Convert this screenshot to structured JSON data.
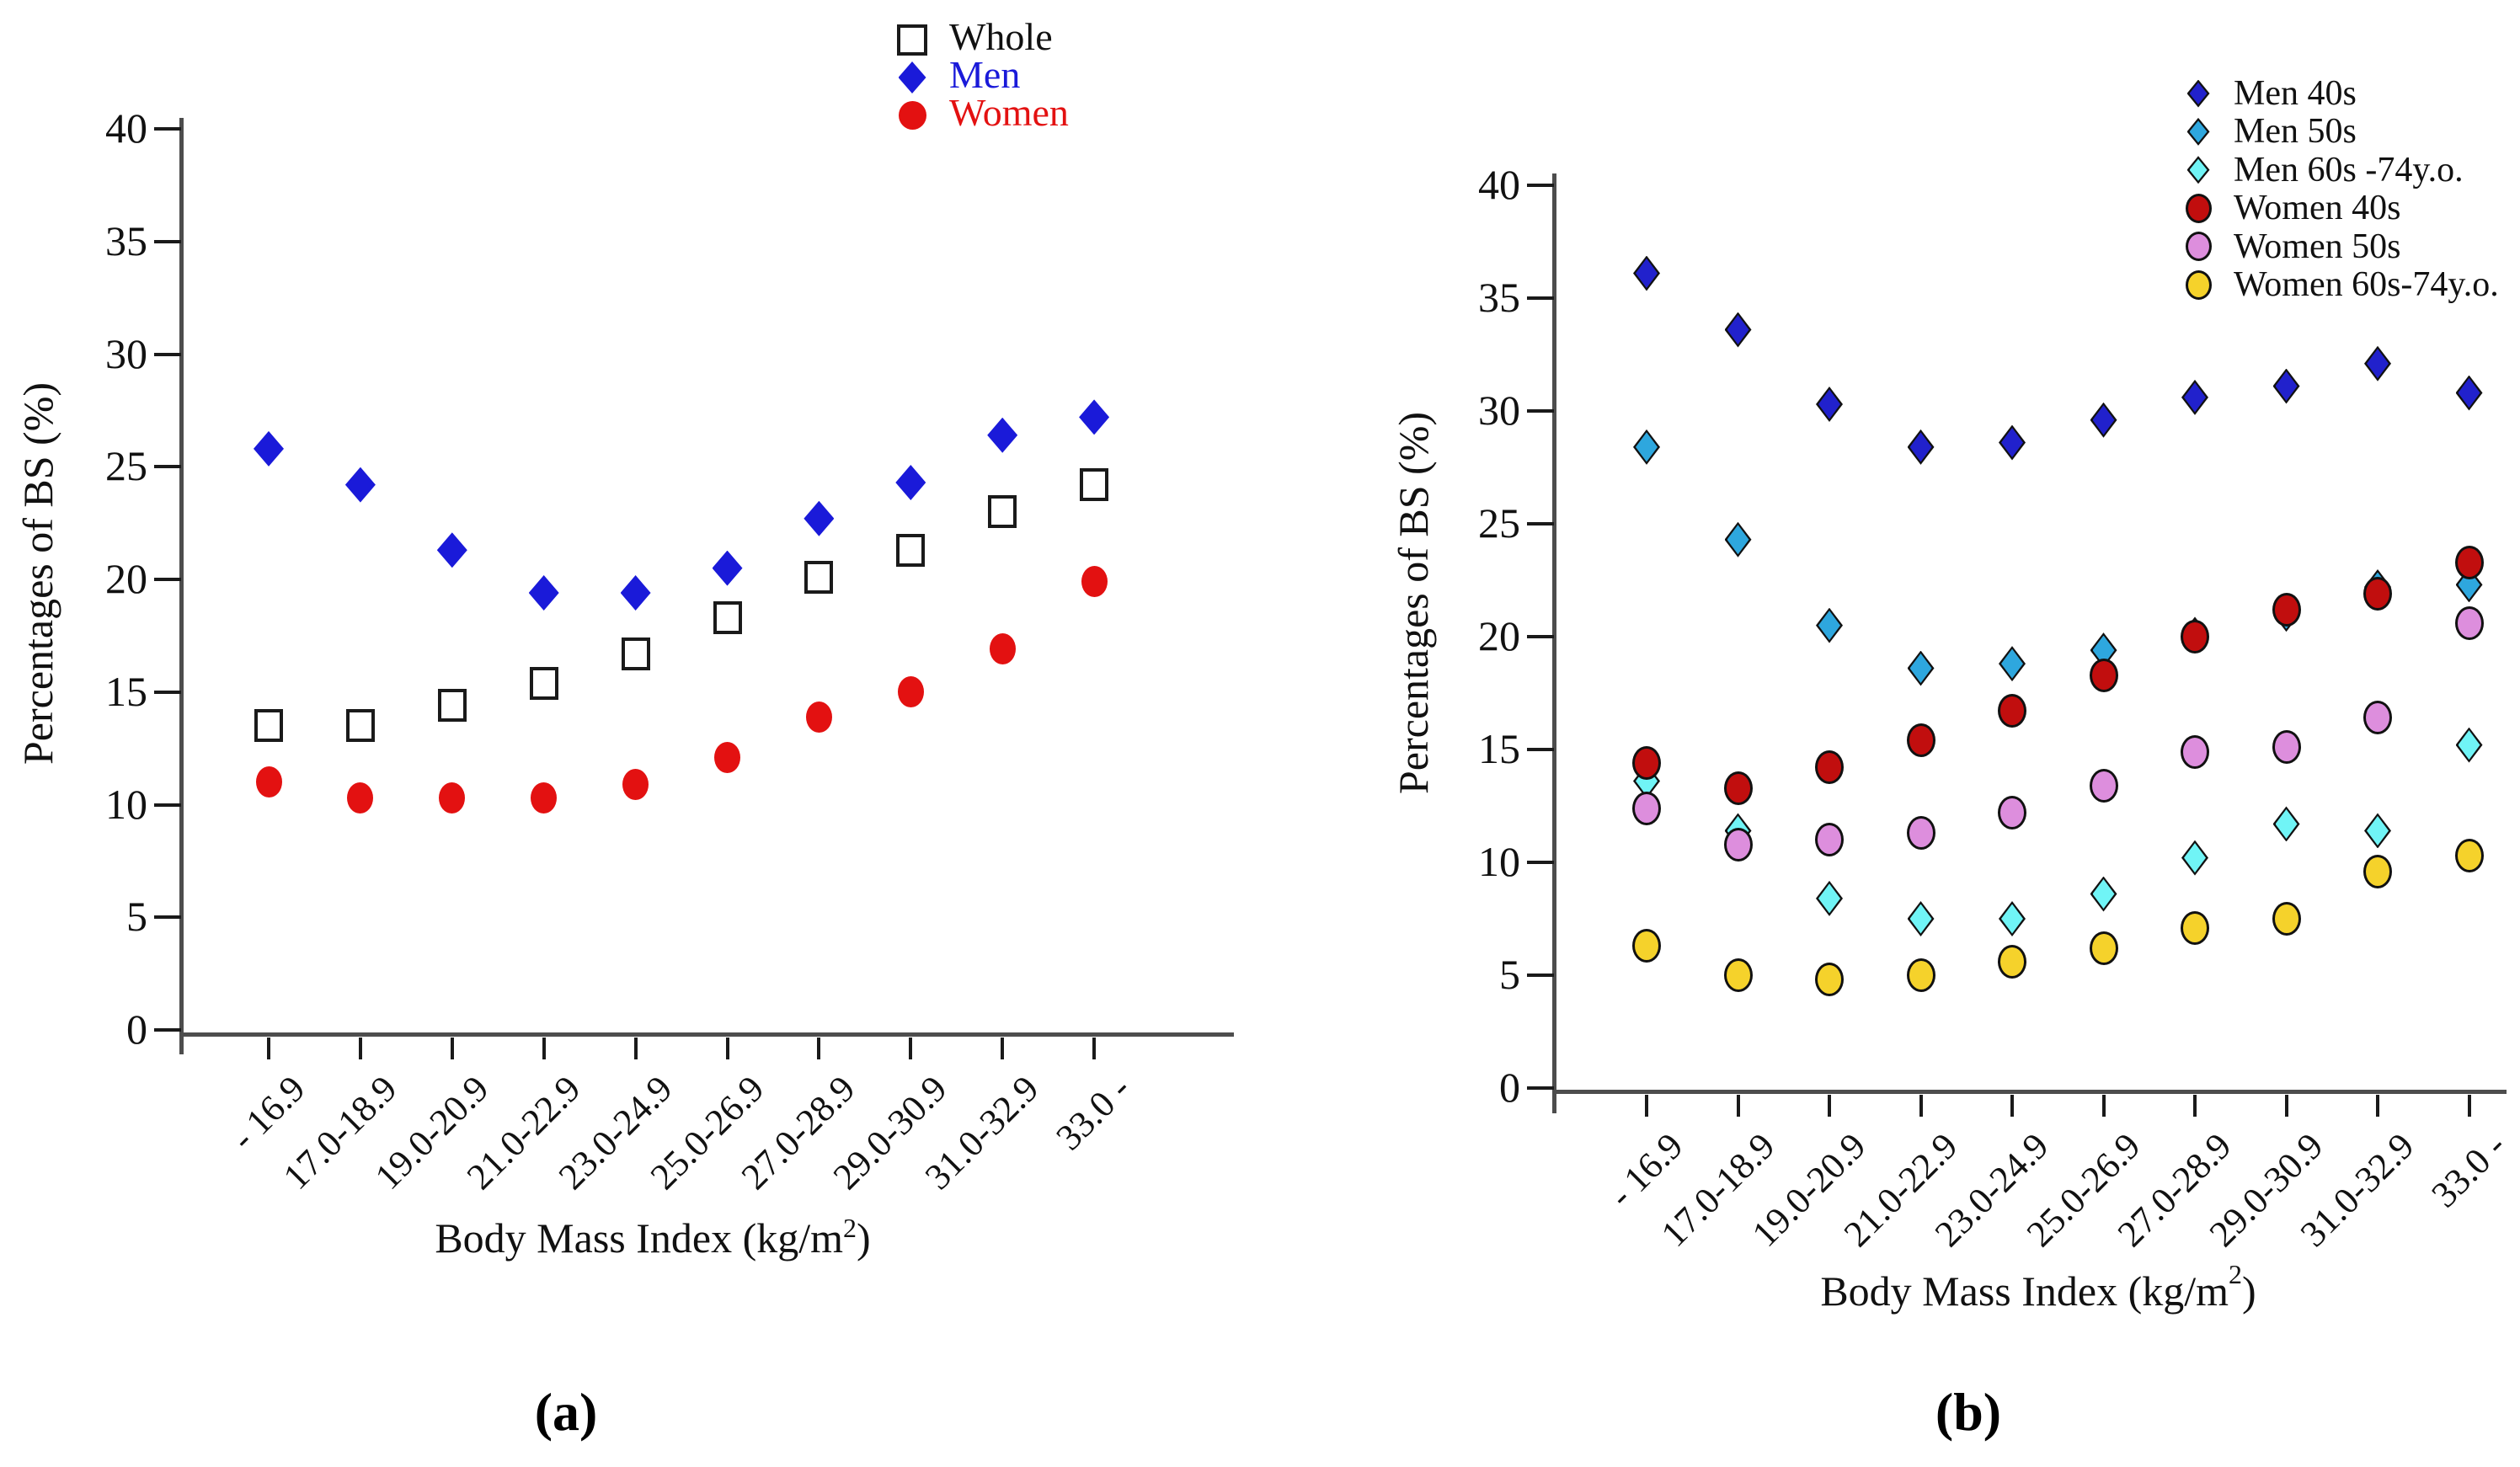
{
  "figure": {
    "ylabel": "Percentages of BS (%)",
    "xlabel": {
      "pre": "Body Mass Index (kg/m",
      "sup": "2",
      "post": ")"
    }
  },
  "chart_data": [
    {
      "panel": "a",
      "type": "scatter",
      "caption": "(a)",
      "ylabel": "Percentages of BS (%)",
      "xlabel": {
        "pre": "Body Mass Index (kg/m",
        "sup": "2",
        "post": ")"
      },
      "ylim": [
        0,
        40
      ],
      "yticks": [
        0,
        5,
        10,
        15,
        20,
        25,
        30,
        35,
        40
      ],
      "grid": false,
      "legend_position": "top-right-above-plot",
      "categories": [
        "- 16.9",
        "17.0-18.9",
        "19.0-20.9",
        "21.0-22.9",
        "23.0-24.9",
        "25.0-26.9",
        "27.0-28.9",
        "29.0-30.9",
        "31.0-32.9",
        "33.0 -"
      ],
      "series": [
        {
          "name": "Whole",
          "marker": "square",
          "fill": "#ffffff",
          "stroke": "#1a1a1a",
          "label_color": "#111111",
          "values": [
            13.5,
            13.5,
            14.4,
            15.4,
            16.7,
            18.3,
            20.1,
            21.3,
            23.0,
            24.2
          ]
        },
        {
          "name": "Men",
          "marker": "diamond",
          "fill": "#1a1ad9",
          "stroke": "",
          "label_color": "#1a1ad9",
          "values": [
            25.8,
            24.2,
            21.3,
            19.4,
            19.4,
            20.5,
            22.7,
            24.3,
            26.4,
            27.2
          ]
        },
        {
          "name": "Women",
          "marker": "circle",
          "fill": "#e31111",
          "stroke": "",
          "label_color": "#e31111",
          "values": [
            11.0,
            10.3,
            10.3,
            10.3,
            10.9,
            12.1,
            13.9,
            15.0,
            16.9,
            19.9
          ]
        }
      ]
    },
    {
      "panel": "b",
      "type": "scatter",
      "caption": "(b)",
      "ylabel": "Percentages of BS (%)",
      "xlabel": {
        "pre": "Body Mass Index (kg/m",
        "sup": "2",
        "post": ")"
      },
      "ylim": [
        0,
        40
      ],
      "yticks": [
        0,
        5,
        10,
        15,
        20,
        25,
        30,
        35,
        40
      ],
      "grid": false,
      "legend_position": "top-right-above-plot",
      "categories": [
        "- 16.9",
        "17.0-18.9",
        "19.0-20.9",
        "21.0-22.9",
        "23.0-24.9",
        "25.0-26.9",
        "27.0-28.9",
        "29.0-30.9",
        "31.0-32.9",
        "33.0 -"
      ],
      "series": [
        {
          "name": "Men 40s",
          "marker": "diamond",
          "fill": "#2121cc",
          "stroke": "#111111",
          "label_color": "#111111",
          "values": [
            36.1,
            33.6,
            30.3,
            28.4,
            28.6,
            29.6,
            30.6,
            31.1,
            32.1,
            30.8
          ]
        },
        {
          "name": "Men 50s",
          "marker": "diamond",
          "fill": "#2ea7de",
          "stroke": "#111111",
          "label_color": "#111111",
          "values": [
            28.4,
            24.3,
            20.5,
            18.6,
            18.8,
            19.4,
            20.1,
            21.0,
            22.2,
            22.3
          ]
        },
        {
          "name": "Men 60s -74y.o.",
          "marker": "diamond",
          "fill": "#70f4f6",
          "stroke": "#111111",
          "label_color": "#111111",
          "values": [
            13.6,
            11.4,
            8.4,
            7.5,
            7.5,
            8.6,
            10.2,
            11.7,
            11.4,
            15.2
          ]
        },
        {
          "name": "Women 40s",
          "marker": "circle",
          "fill": "#c10e0e",
          "stroke": "#111111",
          "label_color": "#111111",
          "values": [
            14.4,
            13.3,
            14.2,
            15.4,
            16.7,
            18.3,
            20.0,
            21.2,
            21.9,
            23.3
          ]
        },
        {
          "name": "Women 50s",
          "marker": "circle",
          "fill": "#dd8edd",
          "stroke": "#111111",
          "label_color": "#111111",
          "values": [
            12.4,
            10.8,
            11.0,
            11.3,
            12.2,
            13.4,
            14.9,
            15.1,
            16.4,
            20.6
          ]
        },
        {
          "name": "Women 60s-74y.o.",
          "marker": "circle",
          "fill": "#f5d22b",
          "stroke": "#111111",
          "label_color": "#111111",
          "values": [
            6.3,
            5.0,
            4.8,
            5.0,
            5.6,
            6.2,
            7.1,
            7.5,
            9.6,
            10.3
          ]
        }
      ]
    }
  ]
}
